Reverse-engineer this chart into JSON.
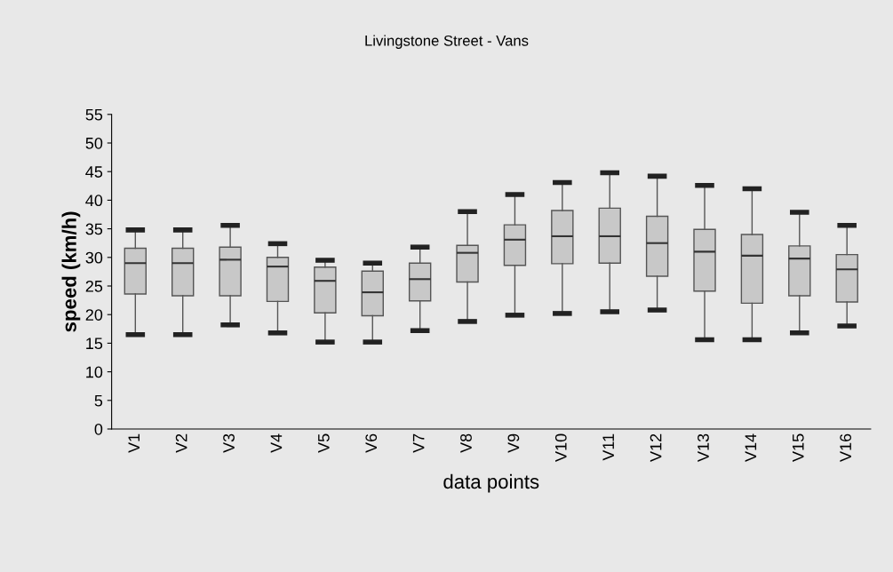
{
  "chart_data": {
    "type": "box",
    "title": "Livingstone Street - Vans",
    "xlabel": "data points",
    "ylabel": "speed (km/h)",
    "categories": [
      "V1",
      "V2",
      "V3",
      "V4",
      "V5",
      "V6",
      "V7",
      "V8",
      "V9",
      "V10",
      "V11",
      "V12",
      "V13",
      "V14",
      "V15",
      "V16"
    ],
    "color": "#c8c8c8",
    "boxes": [
      {
        "low": 16.5,
        "q1": 23.6,
        "median": 29,
        "q3": 31.6,
        "high": 34.8
      },
      {
        "low": 16.5,
        "q1": 23.3,
        "median": 29,
        "q3": 31.6,
        "high": 34.8
      },
      {
        "low": 18.2,
        "q1": 23.3,
        "median": 29.6,
        "q3": 31.8,
        "high": 35.6
      },
      {
        "low": 16.8,
        "q1": 22.3,
        "median": 28.4,
        "q3": 30,
        "high": 32.4
      },
      {
        "low": 15.2,
        "q1": 20.3,
        "median": 25.9,
        "q3": 28.3,
        "high": 29.5
      },
      {
        "low": 15.2,
        "q1": 19.8,
        "median": 23.9,
        "q3": 27.6,
        "high": 29
      },
      {
        "low": 17.2,
        "q1": 22.4,
        "median": 26.2,
        "q3": 29,
        "high": 31.8
      },
      {
        "low": 18.8,
        "q1": 25.7,
        "median": 30.8,
        "q3": 32.1,
        "high": 38
      },
      {
        "low": 19.9,
        "q1": 28.6,
        "median": 33.1,
        "q3": 35.7,
        "high": 41
      },
      {
        "low": 20.2,
        "q1": 28.9,
        "median": 33.7,
        "q3": 38.2,
        "high": 43.1
      },
      {
        "low": 20.5,
        "q1": 29,
        "median": 33.7,
        "q3": 38.6,
        "high": 44.8
      },
      {
        "low": 20.8,
        "q1": 26.7,
        "median": 32.5,
        "q3": 37.2,
        "high": 44.2
      },
      {
        "low": 15.6,
        "q1": 24.1,
        "median": 31,
        "q3": 34.9,
        "high": 42.6
      },
      {
        "low": 15.6,
        "q1": 22,
        "median": 30.3,
        "q3": 34,
        "high": 42
      },
      {
        "low": 16.8,
        "q1": 23.3,
        "median": 29.8,
        "q3": 32,
        "high": 37.9
      },
      {
        "low": 18,
        "q1": 22.2,
        "median": 27.9,
        "q3": 30.5,
        "high": 35.6
      }
    ],
    "ylim": [
      0,
      55
    ],
    "yticks": [
      0,
      5,
      10,
      15,
      20,
      25,
      30,
      35,
      40,
      45,
      50,
      55
    ],
    "grid": false,
    "legend": false
  }
}
